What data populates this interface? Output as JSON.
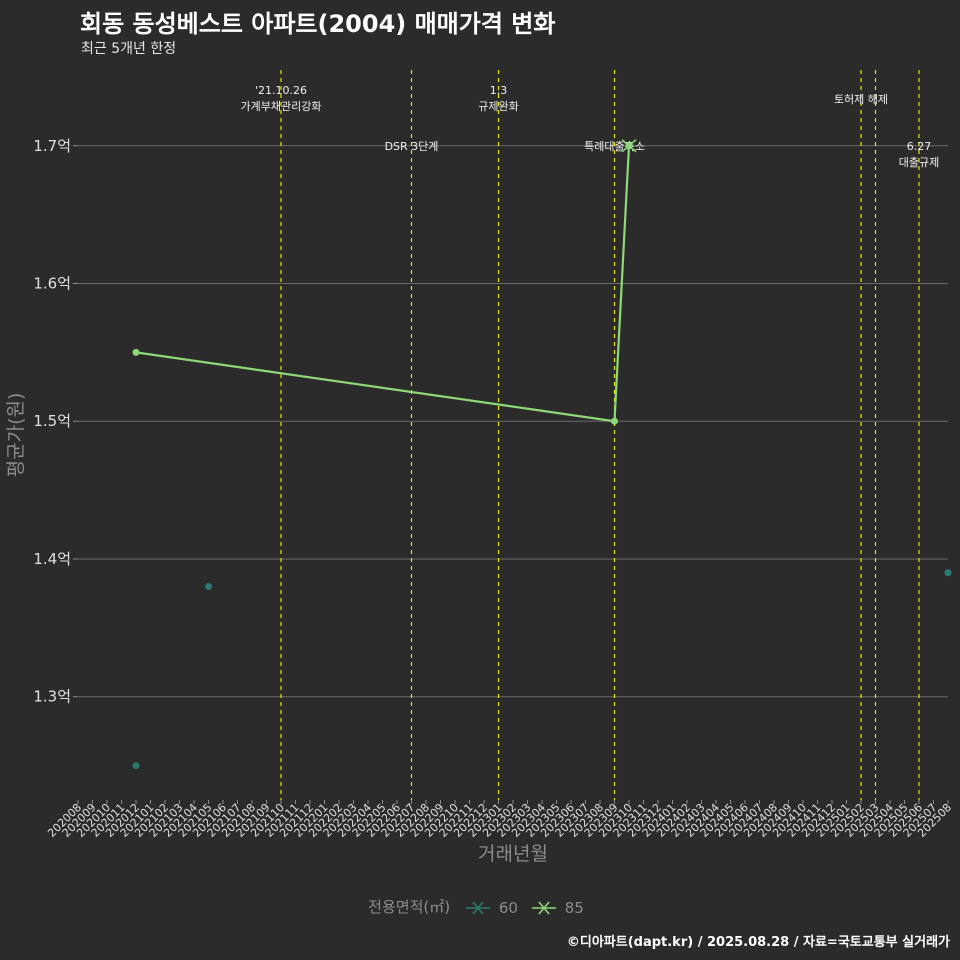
{
  "header": {
    "title": "회동 동성베스트 아파트(2004) 매매가격 변화",
    "subtitle": "최근 5개년 한정"
  },
  "caption": "©디아파트(dapt.kr) / 2025.08.28 / 자료=국토교통부 실거래가",
  "legend": {
    "title": "전용면적(㎡)",
    "items": [
      {
        "label": "60",
        "color": "#2a7a6f"
      },
      {
        "label": "85",
        "color": "#8fd87a"
      }
    ]
  },
  "chart_data": {
    "type": "line",
    "title": "회동 동성베스트 아파트(2004) 매매가격 변화",
    "subtitle": "최근 5개년 한정",
    "xlabel": "거래년월",
    "ylabel": "평균가(원)",
    "categories": [
      "202008",
      "202009",
      "202010",
      "202011",
      "202012",
      "202101",
      "202102",
      "202103",
      "202104",
      "202105",
      "202106",
      "202107",
      "202108",
      "202109",
      "202110",
      "202111",
      "202112",
      "202201",
      "202202",
      "202203",
      "202204",
      "202205",
      "202206",
      "202207",
      "202208",
      "202209",
      "202210",
      "202211",
      "202212",
      "202301",
      "202302",
      "202303",
      "202304",
      "202305",
      "202306",
      "202307",
      "202308",
      "202309",
      "202310",
      "202311",
      "202312",
      "202401",
      "202402",
      "202403",
      "202404",
      "202405",
      "202406",
      "202407",
      "202408",
      "202409",
      "202410",
      "202411",
      "202412",
      "202501",
      "202502",
      "202503",
      "202504",
      "202505",
      "202506",
      "202507",
      "202508"
    ],
    "y_ticks": [
      {
        "value": 1.3,
        "label": "1.3억"
      },
      {
        "value": 1.4,
        "label": "1.4억"
      },
      {
        "value": 1.5,
        "label": "1.5억"
      },
      {
        "value": 1.6,
        "label": "1.6억"
      },
      {
        "value": 1.7,
        "label": "1.7억"
      }
    ],
    "ylim": [
      1.225,
      1.755
    ],
    "series": [
      {
        "name": "60",
        "color": "#2a7a6f",
        "points": [
          {
            "x": "202012",
            "y": 1.25
          },
          {
            "x": "202105",
            "y": 1.38
          },
          {
            "x": "202508",
            "y": 1.39
          }
        ]
      },
      {
        "name": "85",
        "color": "#8fd87a",
        "points": [
          {
            "x": "202012",
            "y": 1.55
          },
          {
            "x": "202309",
            "y": 1.5
          },
          {
            "x": "202310",
            "y": 1.7
          }
        ]
      }
    ],
    "events": [
      {
        "x": "202110",
        "lines": [
          "'21.10.26",
          "가계부채관리강화"
        ],
        "level": 1
      },
      {
        "x": "202207",
        "lines": [
          "DSR 3단계"
        ],
        "level": 3
      },
      {
        "x": "202301",
        "lines": [
          "1.3",
          "규제완화"
        ],
        "level": 1
      },
      {
        "x": "202309",
        "lines": [
          "특례대출축소"
        ],
        "level": 3
      },
      {
        "x": "202502",
        "lines": [
          "토허제 해제"
        ],
        "level": 2
      },
      {
        "x": "202503",
        "lines": [],
        "level": 2
      },
      {
        "x": "202506",
        "lines": [
          "6.27",
          "대출규제"
        ],
        "level": 3
      }
    ],
    "grid": true,
    "legend_position": "bottom"
  }
}
